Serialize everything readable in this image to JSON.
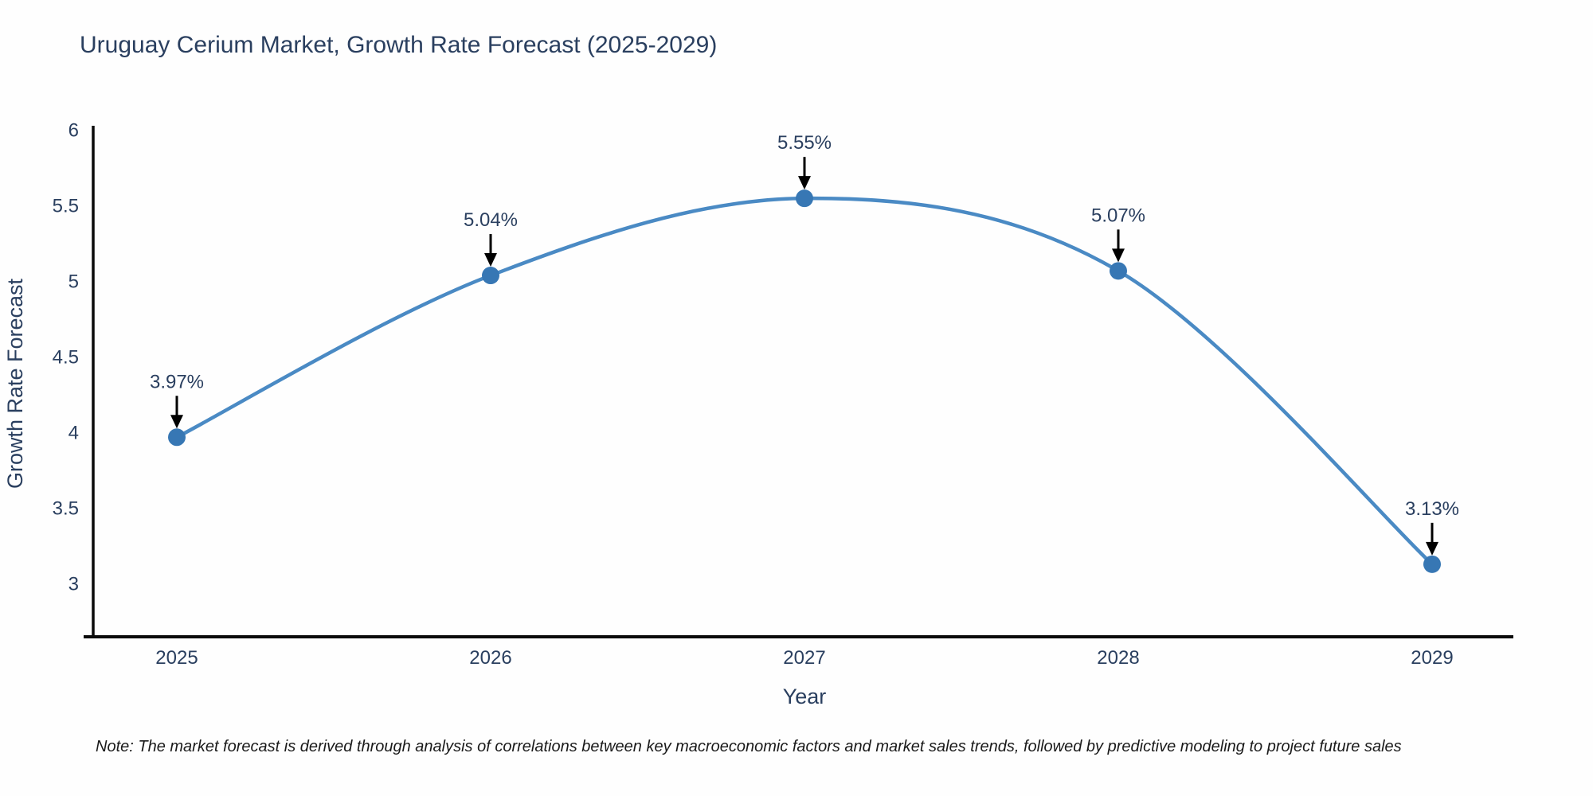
{
  "chart_data": {
    "type": "line",
    "title": "Uruguay Cerium Market, Growth Rate Forecast (2025-2029)",
    "xlabel": "Year",
    "ylabel": "Growth Rate Forecast",
    "categories": [
      "2025",
      "2026",
      "2027",
      "2028",
      "2029"
    ],
    "values": [
      3.97,
      5.04,
      5.55,
      5.07,
      3.13
    ],
    "point_labels": [
      "3.97%",
      "5.04%",
      "5.55%",
      "5.07%",
      "3.13%"
    ],
    "yticks": [
      3,
      3.5,
      4,
      4.5,
      5,
      5.5,
      6
    ],
    "ytick_labels": [
      "3",
      "3.5",
      "4",
      "4.5",
      "5",
      "5.5",
      "6"
    ],
    "ylim": [
      2.65,
      6.03
    ],
    "grid": false,
    "legend": "none",
    "smooth_spline": true,
    "line_color": "#4a8ac4",
    "marker_color": "#3777b4",
    "axis_color": "#0a0a0a",
    "text_color": "#2a3f5f",
    "annotation_arrow_color": "#000000",
    "note": "Note: The market forecast is derived through analysis of correlations between key macroeconomic factors and market sales trends, followed by predictive modeling to project future sales"
  }
}
